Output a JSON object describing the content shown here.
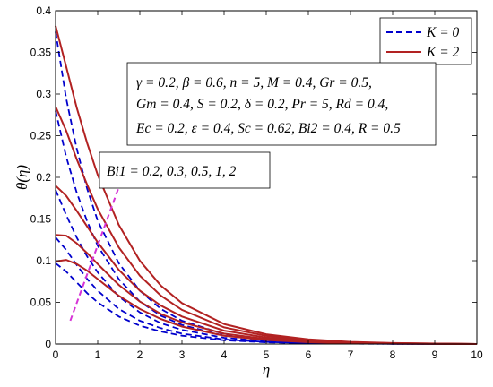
{
  "chart_data": {
    "type": "line",
    "xlabel": "η",
    "ylabel": "θ(η)",
    "xlim": [
      0,
      10
    ],
    "ylim": [
      0,
      0.4
    ],
    "xticks": [
      "0",
      "1",
      "2",
      "3",
      "4",
      "5",
      "6",
      "7",
      "8",
      "9",
      "10"
    ],
    "yticks": [
      "0",
      "0.05",
      "0.1",
      "0.15",
      "0.2",
      "0.25",
      "0.3",
      "0.35",
      "0.4"
    ],
    "grid": false,
    "legend_position": "top-right",
    "colors": {
      "K0": "#0000cc",
      "K2": "#b22222",
      "arrow": "#d633d6"
    },
    "legend": [
      {
        "label": "K = 0",
        "style": "dashed",
        "color": "#0000cc"
      },
      {
        "label": "K = 2",
        "style": "solid",
        "color": "#b22222"
      }
    ],
    "parameters_lines": [
      "γ = 0.2, β = 0.6, n = 5, M = 0.4, Gr = 0.5,",
      "Gm = 0.4, S = 0.2, δ = 0.2, Pr = 5, Rd = 0.4,",
      "Ec = 0.2, ε = 0.4, Sc = 0.62, Bi2 = 0.4, R = 0.5"
    ],
    "bi1_label": "Bi1 = 0.2, 0.3, 0.5, 1, 2",
    "series": [
      {
        "name": "K = 0",
        "Bi1": 0.2,
        "style": "dashed",
        "x": [
          0,
          0.25,
          0.5,
          0.75,
          1,
          1.5,
          2,
          2.5,
          3,
          4,
          5,
          6,
          7,
          8,
          10
        ],
        "y": [
          0.097,
          0.087,
          0.074,
          0.061,
          0.05,
          0.033,
          0.022,
          0.015,
          0.01,
          0.0045,
          0.002,
          0.001,
          0.0004,
          0.0002,
          0
        ]
      },
      {
        "name": "K = 0",
        "Bi1": 0.3,
        "style": "dashed",
        "x": [
          0,
          0.25,
          0.5,
          0.75,
          1,
          1.5,
          2,
          2.5,
          3,
          4,
          5,
          6,
          7,
          8,
          10
        ],
        "y": [
          0.128,
          0.113,
          0.095,
          0.078,
          0.064,
          0.042,
          0.028,
          0.019,
          0.0125,
          0.0055,
          0.0025,
          0.0011,
          0.0005,
          0.0002,
          0
        ]
      },
      {
        "name": "K = 0",
        "Bi1": 0.5,
        "style": "dashed",
        "x": [
          0,
          0.25,
          0.5,
          0.75,
          1,
          1.5,
          2,
          2.5,
          3,
          4,
          5,
          6,
          7,
          8,
          10
        ],
        "y": [
          0.185,
          0.155,
          0.128,
          0.105,
          0.086,
          0.057,
          0.038,
          0.025,
          0.017,
          0.0075,
          0.0033,
          0.0015,
          0.0007,
          0.0003,
          0
        ]
      },
      {
        "name": "K = 0",
        "Bi1": 1,
        "style": "dashed",
        "x": [
          0,
          0.25,
          0.5,
          0.75,
          1,
          1.5,
          2,
          2.5,
          3,
          4,
          5,
          6,
          7,
          8,
          10
        ],
        "y": [
          0.28,
          0.225,
          0.182,
          0.147,
          0.118,
          0.078,
          0.051,
          0.034,
          0.023,
          0.01,
          0.0045,
          0.002,
          0.0009,
          0.0004,
          0
        ]
      },
      {
        "name": "K = 0",
        "Bi1": 2,
        "style": "dashed",
        "x": [
          0,
          0.25,
          0.5,
          0.75,
          1,
          1.5,
          2,
          2.5,
          3,
          4,
          5,
          6,
          7,
          8,
          10
        ],
        "y": [
          0.375,
          0.295,
          0.235,
          0.186,
          0.148,
          0.097,
          0.064,
          0.042,
          0.028,
          0.012,
          0.0055,
          0.0025,
          0.0011,
          0.0005,
          0
        ]
      },
      {
        "name": "K = 2",
        "Bi1": 0.2,
        "style": "solid",
        "x": [
          0,
          0.25,
          0.5,
          0.75,
          1,
          1.5,
          2,
          2.5,
          3,
          4,
          5,
          6,
          7,
          8,
          10
        ],
        "y": [
          0.099,
          0.101,
          0.096,
          0.088,
          0.078,
          0.058,
          0.042,
          0.03,
          0.021,
          0.01,
          0.0048,
          0.0022,
          0.001,
          0.0004,
          0
        ]
      },
      {
        "name": "K = 2",
        "Bi1": 0.3,
        "style": "solid",
        "x": [
          0,
          0.25,
          0.5,
          0.75,
          1,
          1.5,
          2,
          2.5,
          3,
          4,
          5,
          6,
          7,
          8,
          10
        ],
        "y": [
          0.131,
          0.13,
          0.121,
          0.109,
          0.096,
          0.071,
          0.051,
          0.036,
          0.026,
          0.0125,
          0.006,
          0.0028,
          0.0013,
          0.0005,
          0
        ]
      },
      {
        "name": "K = 2",
        "Bi1": 0.5,
        "style": "solid",
        "x": [
          0,
          0.25,
          0.5,
          0.75,
          1,
          1.5,
          2,
          2.5,
          3,
          4,
          5,
          6,
          7,
          8,
          10
        ],
        "y": [
          0.19,
          0.178,
          0.16,
          0.141,
          0.122,
          0.089,
          0.064,
          0.046,
          0.033,
          0.016,
          0.0078,
          0.0037,
          0.0017,
          0.0007,
          0
        ]
      },
      {
        "name": "K = 2",
        "Bi1": 1,
        "style": "solid",
        "x": [
          0,
          0.25,
          0.5,
          0.75,
          1,
          1.5,
          2,
          2.5,
          3,
          4,
          5,
          6,
          7,
          8,
          10
        ],
        "y": [
          0.285,
          0.256,
          0.222,
          0.191,
          0.162,
          0.116,
          0.082,
          0.058,
          0.041,
          0.02,
          0.0098,
          0.0047,
          0.0022,
          0.001,
          0
        ]
      },
      {
        "name": "K = 2",
        "Bi1": 2,
        "style": "solid",
        "x": [
          0,
          0.25,
          0.5,
          0.75,
          1,
          1.5,
          2,
          2.5,
          3,
          4,
          5,
          6,
          7,
          8,
          10
        ],
        "y": [
          0.382,
          0.333,
          0.284,
          0.241,
          0.203,
          0.143,
          0.1,
          0.07,
          0.049,
          0.024,
          0.0117,
          0.0056,
          0.0026,
          0.0012,
          0
        ]
      }
    ],
    "arrow": {
      "from": [
        0.35,
        0.028
      ],
      "to": [
        1.55,
        0.195
      ]
    }
  }
}
